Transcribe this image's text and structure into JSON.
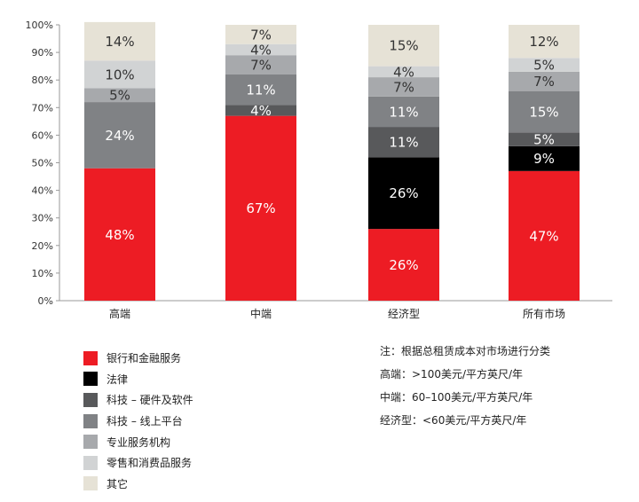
{
  "chart_data": {
    "type": "bar",
    "stacked": true,
    "categories": [
      "高端",
      "中端",
      "经济型",
      "所有市场"
    ],
    "y_ticks": [
      "0%",
      "10%",
      "20%",
      "30%",
      "40%",
      "50%",
      "60%",
      "70%",
      "80%",
      "90%",
      "100%"
    ],
    "ylim": [
      0,
      100
    ],
    "series": [
      {
        "name": "银行和金融服务",
        "color": "#ed1c24",
        "values": [
          48,
          67,
          26,
          47
        ],
        "labels": [
          "48%",
          "67%",
          "26%",
          "47%"
        ]
      },
      {
        "name": "法律",
        "color": "#000000",
        "values": [
          0,
          0,
          26,
          9
        ],
        "labels": [
          "",
          "",
          "26%",
          "9%"
        ]
      },
      {
        "name": "科技 – 硬件及软件",
        "color": "#58595b",
        "values": [
          0,
          4,
          11,
          5
        ],
        "labels": [
          "",
          "4%",
          "11%",
          "5%"
        ]
      },
      {
        "name": "科技 – 线上平台",
        "color": "#808285",
        "values": [
          24,
          11,
          11,
          15
        ],
        "labels": [
          "24%",
          "11%",
          "11%",
          "15%"
        ]
      },
      {
        "name": "专业服务机构",
        "color": "#a7a9ac",
        "values": [
          5,
          7,
          7,
          7
        ],
        "labels": [
          "5%",
          "7%",
          "7%",
          "7%"
        ]
      },
      {
        "name": "零售和消费品服务",
        "color": "#d1d3d4",
        "values": [
          10,
          4,
          4,
          5
        ],
        "labels": [
          "10%",
          "4%",
          "4%",
          "5%"
        ]
      },
      {
        "name": "其它",
        "color": "#e6e2d6",
        "values": [
          14,
          7,
          15,
          12
        ],
        "labels": [
          "14%",
          "7%",
          "15%",
          "12%"
        ]
      }
    ],
    "grid": false,
    "legend_position": "bottom-left"
  },
  "notes": [
    "注：根据总租赁成本对市场进行分类",
    "高端：>100美元/平方英尺/年",
    "中端：60–100美元/平方英尺/年",
    "经济型：<60美元/平方英尺/年"
  ]
}
